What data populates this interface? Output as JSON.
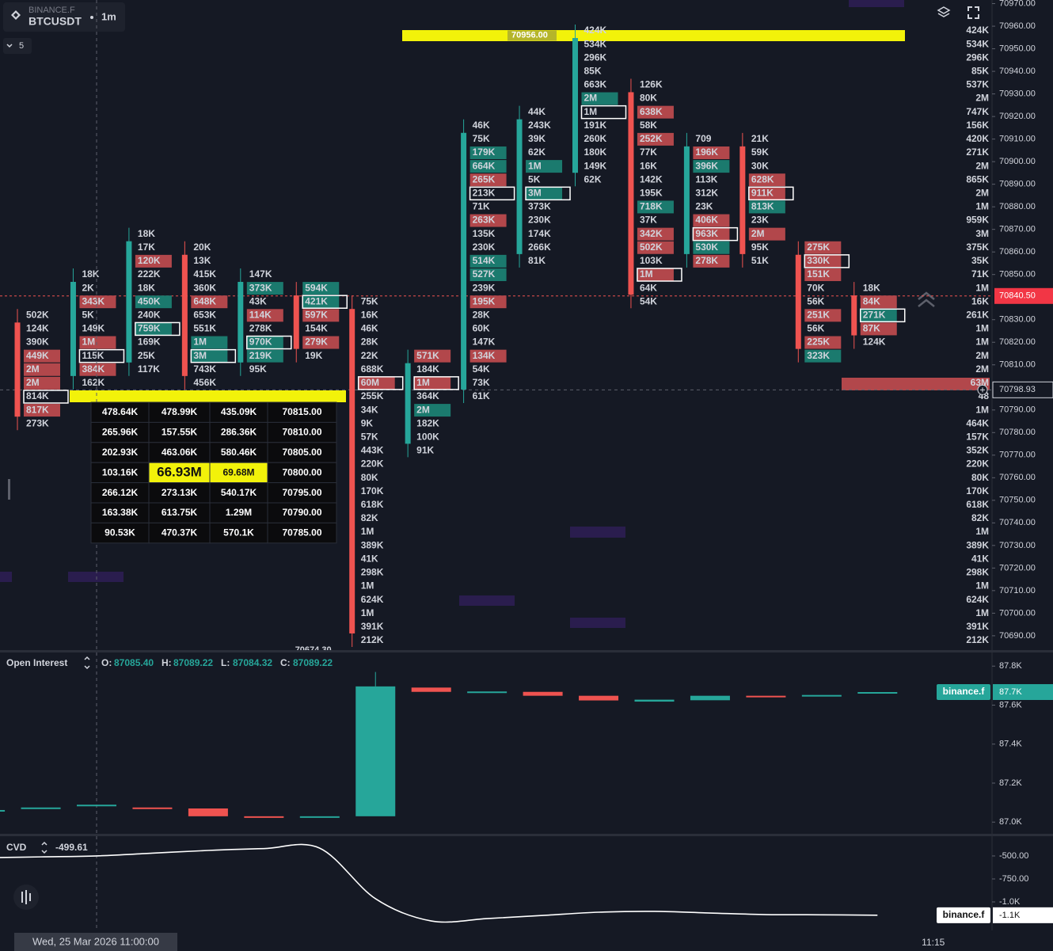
{
  "header": {
    "exchange": "BINANCE.F",
    "symbol": "BTCUSDT",
    "interval": "1m",
    "indicator_count": "5"
  },
  "price_axis": {
    "ylim": [
      70684,
      70971.6
    ],
    "ticks": [
      {
        "value": 70970,
        "label": "70970.00"
      },
      {
        "value": 70960,
        "label": "70960.00"
      },
      {
        "value": 70950,
        "label": "70950.00"
      },
      {
        "value": 70940,
        "label": "70940.00"
      },
      {
        "value": 70930,
        "label": "70930.00"
      },
      {
        "value": 70920,
        "label": "70920.00"
      },
      {
        "value": 70910,
        "label": "70910.00"
      },
      {
        "value": 70900,
        "label": "70900.00"
      },
      {
        "value": 70890,
        "label": "70890.00"
      },
      {
        "value": 70880,
        "label": "70880.00"
      },
      {
        "value": 70870,
        "label": "70870.00"
      },
      {
        "value": 70860,
        "label": "70860.00"
      },
      {
        "value": 70850,
        "label": "70850.00"
      },
      {
        "value": 70830,
        "label": "70830.00"
      },
      {
        "value": 70820,
        "label": "70820.00"
      },
      {
        "value": 70810,
        "label": "70810.00"
      },
      {
        "value": 70790,
        "label": "70790.00"
      },
      {
        "value": 70780,
        "label": "70780.00"
      },
      {
        "value": 70770,
        "label": "70770.00"
      },
      {
        "value": 70760,
        "label": "70760.00"
      },
      {
        "value": 70750,
        "label": "70750.00"
      },
      {
        "value": 70740,
        "label": "70740.00"
      },
      {
        "value": 70730,
        "label": "70730.00"
      },
      {
        "value": 70720,
        "label": "70720.00"
      },
      {
        "value": 70710,
        "label": "70710.00"
      },
      {
        "value": 70700,
        "label": "70700.00"
      },
      {
        "value": 70690,
        "label": "70690.00"
      }
    ],
    "last_price": {
      "value": 70840.5,
      "label": "70840.50"
    },
    "crosshair_price": 70798.93
  },
  "footprint": {
    "high_label": {
      "value": 70956,
      "label": "70956.00"
    },
    "low_label": {
      "value": 70674.3,
      "label": "70674.30"
    },
    "up_color": "#26a69a",
    "down_color": "#ef5350",
    "row_volumes": [
      "424K",
      "534K",
      "296K",
      "85K",
      "537K",
      "2M",
      "747K",
      "156K",
      "420K",
      "271K",
      "2M",
      "865K",
      "2M",
      "1M",
      "959K",
      "3M",
      "375K",
      "35K",
      "71K",
      "1M",
      "16K",
      "261K",
      "1M",
      "1M",
      "2M",
      "2M",
      "63M",
      "48",
      "1M",
      "464K",
      "157K",
      "352K",
      "220K",
      "80K",
      "170K",
      "618K",
      "82K",
      "1M",
      "389K",
      "41K",
      "298K",
      "1M",
      "624K",
      "1M",
      "391K",
      "212K"
    ],
    "columns": [
      {
        "candle": "down",
        "start_row": 21,
        "cells": [
          "502K",
          "124K",
          "390K",
          "449K",
          "2M",
          "2M",
          "814K",
          "817K",
          "273K"
        ],
        "styles": [
          "n",
          "n",
          "n",
          "r",
          "r",
          "r",
          "b",
          "r",
          "n"
        ]
      },
      {
        "candle": "up",
        "start_row": 18,
        "cells": [
          "18K",
          "2K",
          "343K",
          "5K",
          "149K",
          "1M",
          "115K",
          "384K",
          "162K"
        ],
        "styles": [
          "n",
          "n",
          "r",
          "n",
          "n",
          "r",
          "b",
          "r",
          "n"
        ]
      },
      {
        "candle": "up",
        "start_row": 15,
        "cells": [
          "18K",
          "17K",
          "120K",
          "222K",
          "18K",
          "450K",
          "240K",
          "759K",
          "169K",
          "25K",
          "117K"
        ],
        "styles": [
          "n",
          "n",
          "r",
          "n",
          "n",
          "g",
          "n",
          "gb",
          "n",
          "n",
          "n"
        ]
      },
      {
        "candle": "down",
        "start_row": 16,
        "cells": [
          "20K",
          "13K",
          "415K",
          "360K",
          "648K",
          "653K",
          "551K",
          "1M",
          "3M",
          "743K",
          "456K"
        ],
        "styles": [
          "n",
          "n",
          "n",
          "n",
          "r",
          "n",
          "n",
          "g",
          "gb",
          "n",
          "n"
        ]
      },
      {
        "candle": "up",
        "start_row": 18,
        "cells": [
          "147K",
          "373K",
          "43K",
          "114K",
          "278K",
          "970K",
          "219K",
          "95K"
        ],
        "styles": [
          "n",
          "g",
          "n",
          "r",
          "n",
          "gb",
          "g",
          "n"
        ]
      },
      {
        "candle": "down",
        "start_row": 19,
        "cells": [
          "594K",
          "421K",
          "597K",
          "154K",
          "279K",
          "19K"
        ],
        "styles": [
          "g",
          "gb",
          "r",
          "n",
          "r",
          "n"
        ]
      },
      {
        "candle": "down",
        "start_row": 20,
        "cells": [
          "75K",
          "16K",
          "46K",
          "28K",
          "22K",
          "688K",
          "60M",
          "255K",
          "34K",
          "9K",
          "57K",
          "443K",
          "220K",
          "80K",
          "170K",
          "618K",
          "82K",
          "1M",
          "389K",
          "41K",
          "298K",
          "1M",
          "624K",
          "1M",
          "391K",
          "212K"
        ],
        "styles": [
          "n",
          "n",
          "n",
          "n",
          "n",
          "n",
          "rb",
          "n",
          "n",
          "n",
          "n",
          "n",
          "n",
          "n",
          "n",
          "n",
          "n",
          "n",
          "n",
          "n",
          "n",
          "n",
          "n",
          "n",
          "n",
          "n"
        ]
      },
      {
        "candle": "up",
        "start_row": 24,
        "cells": [
          "571K",
          "184K",
          "1M",
          "364K",
          "2M",
          "182K",
          "100K",
          "91K"
        ],
        "styles": [
          "r",
          "n",
          "rb",
          "n",
          "g",
          "n",
          "n",
          "n"
        ]
      },
      {
        "candle": "up",
        "start_row": 7,
        "cells": [
          "46K",
          "75K",
          "179K",
          "664K",
          "265K",
          "213K",
          "71K",
          "263K",
          "135K",
          "230K",
          "514K",
          "527K",
          "239K",
          "195K",
          "28K",
          "60K",
          "147K",
          "134K",
          "54K",
          "73K",
          "61K"
        ],
        "styles": [
          "n",
          "n",
          "g",
          "g",
          "r",
          "b",
          "n",
          "r",
          "n",
          "n",
          "g",
          "g",
          "n",
          "r",
          "n",
          "n",
          "n",
          "r",
          "n",
          "n",
          "n"
        ]
      },
      {
        "candle": "up",
        "start_row": 6,
        "cells": [
          "44K",
          "243K",
          "39K",
          "62K",
          "1M",
          "5K",
          "3M",
          "373K",
          "230K",
          "174K",
          "266K",
          "81K"
        ],
        "styles": [
          "n",
          "n",
          "n",
          "n",
          "g",
          "n",
          "gb",
          "n",
          "n",
          "n",
          "n",
          "n"
        ]
      },
      {
        "candle": "up",
        "start_row": 0,
        "cells": [
          "424K",
          "534K",
          "296K",
          "85K",
          "663K",
          "2M",
          "1M",
          "191K",
          "260K",
          "180K",
          "149K",
          "62K"
        ],
        "styles": [
          "n",
          "n",
          "n",
          "n",
          "n",
          "g",
          "b",
          "n",
          "n",
          "n",
          "n",
          "n"
        ]
      },
      {
        "candle": "down",
        "start_row": 4,
        "cells": [
          "126K",
          "80K",
          "638K",
          "58K",
          "252K",
          "77K",
          "16K",
          "142K",
          "195K",
          "718K",
          "37K",
          "342K",
          "502K",
          "103K",
          "1M",
          "64K",
          "54K"
        ],
        "styles": [
          "n",
          "n",
          "r",
          "n",
          "r",
          "n",
          "n",
          "n",
          "n",
          "g",
          "n",
          "r",
          "r",
          "n",
          "rb",
          "n",
          "n"
        ]
      },
      {
        "candle": "up",
        "start_row": 8,
        "cells": [
          "709",
          "196K",
          "396K",
          "113K",
          "312K",
          "23K",
          "406K",
          "963K",
          "530K",
          "278K"
        ],
        "styles": [
          "n",
          "r",
          "g",
          "n",
          "n",
          "n",
          "r",
          "rb",
          "g",
          "r"
        ]
      },
      {
        "candle": "down",
        "start_row": 8,
        "cells": [
          "21K",
          "59K",
          "30K",
          "628K",
          "911K",
          "813K",
          "23K",
          "2M",
          "95K",
          "51K"
        ],
        "styles": [
          "n",
          "n",
          "n",
          "r",
          "rb",
          "g",
          "n",
          "r",
          "n",
          "n"
        ]
      },
      {
        "candle": "down",
        "start_row": 16,
        "cells": [
          "275K",
          "330K",
          "151K",
          "70K",
          "56K",
          "251K",
          "56K",
          "225K",
          "323K"
        ],
        "styles": [
          "r",
          "rb",
          "r",
          "n",
          "n",
          "r",
          "n",
          "r",
          "g"
        ]
      },
      {
        "candle": "down",
        "start_row": 19,
        "cells": [
          "18K",
          "84K",
          "271K",
          "87K",
          "124K"
        ],
        "styles": [
          "n",
          "r",
          "gb",
          "r",
          "n"
        ]
      }
    ]
  },
  "tooltip": {
    "rows": [
      [
        "478.64K",
        "478.99K",
        "435.09K",
        "70815.00"
      ],
      [
        "265.96K",
        "157.55K",
        "286.36K",
        "70810.00"
      ],
      [
        "202.93K",
        "463.06K",
        "580.46K",
        "70805.00"
      ],
      [
        "103.16K",
        "66.93M",
        "69.68M",
        "70800.00"
      ],
      [
        "266.12K",
        "273.13K",
        "540.17K",
        "70795.00"
      ],
      [
        "163.38K",
        "613.75K",
        "1.29M",
        "70790.00"
      ],
      [
        "90.53K",
        "470.37K",
        "570.1K",
        "70785.00"
      ]
    ]
  },
  "open_interest": {
    "title": "Open Interest",
    "source": "binance.f",
    "last_label": "87.7K",
    "ohlc": [
      {
        "key": "O:",
        "value": {
          "value": 87085.4,
          "label": "87085.40"
        }
      },
      {
        "key": "H:",
        "value": {
          "value": 87089.22,
          "label": "87089.22"
        }
      },
      {
        "key": "L:",
        "value": {
          "value": 87084.32,
          "label": "87084.32"
        }
      },
      {
        "key": "C:",
        "value": {
          "value": 87089.22,
          "label": "87089.22"
        }
      }
    ],
    "ylim": [
      86940,
      87870
    ],
    "yticks": [
      {
        "value": 87800,
        "label": "87.8K"
      },
      {
        "value": 87600,
        "label": "87.6K"
      },
      {
        "value": 87400,
        "label": "87.4K"
      },
      {
        "value": 87200,
        "label": "87.2K"
      },
      {
        "value": 87000,
        "label": "87.0K"
      }
    ],
    "bars": [
      {
        "open": 87058,
        "close": 87062
      },
      {
        "open": 87070,
        "close": 87075
      },
      {
        "open": 87085.4,
        "close": 87089.22
      },
      {
        "open": 87075,
        "close": 87071
      },
      {
        "open": 87070,
        "close": 87030
      },
      {
        "open": 87030,
        "close": 87026
      },
      {
        "open": 87026,
        "close": 87030
      },
      {
        "open": 87030,
        "close": 87696,
        "high": 87770
      },
      {
        "open": 87690,
        "close": 87668
      },
      {
        "open": 87666,
        "close": 87670
      },
      {
        "open": 87668,
        "close": 87648
      },
      {
        "open": 87648,
        "close": 87624
      },
      {
        "open": 87618,
        "close": 87628
      },
      {
        "open": 87625,
        "close": 87648
      },
      {
        "open": 87648,
        "close": 87645
      },
      {
        "open": 87648,
        "close": 87652
      },
      {
        "open": 87662,
        "close": 87667
      }
    ]
  },
  "cvd": {
    "title": "CVD",
    "current": -499.61,
    "source": "binance.f",
    "last_label": "-1.1K",
    "color": "#ffffff",
    "ylim": [
      -1310,
      -285
    ],
    "yticks": [
      {
        "value": -500,
        "label": "-500.00"
      },
      {
        "value": -750,
        "label": "-750.00"
      },
      {
        "value": -1000,
        "label": "-1.0K"
      }
    ],
    "values": [
      -520,
      -510,
      -499.61,
      -470,
      -440,
      -420,
      -415,
      -965,
      -1207,
      -1181,
      -1147,
      -1112,
      -1103,
      -1121,
      -1138,
      -1140,
      -1145
    ]
  },
  "time_axis": {
    "crosshair_time": "Wed, 25 Mar 2026 11:00:00",
    "tick": "11:15"
  }
}
